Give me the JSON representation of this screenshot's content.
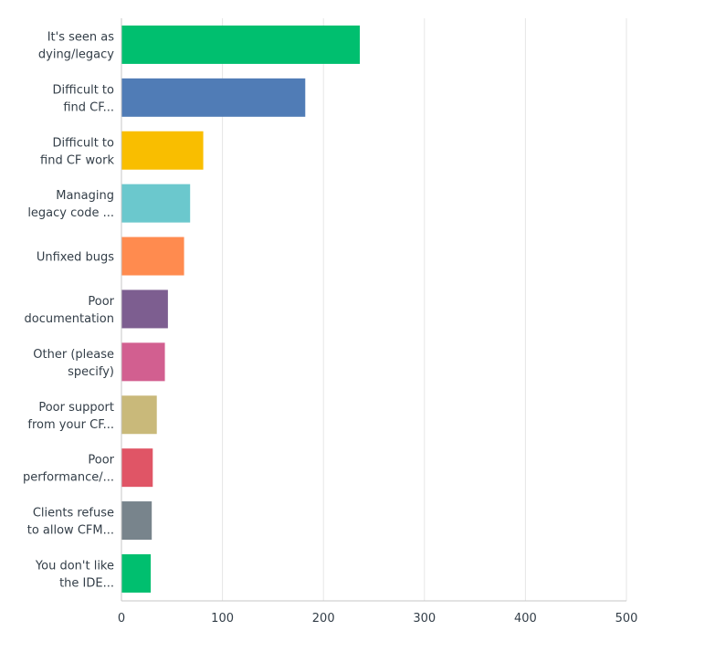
{
  "chart_data": {
    "type": "bar",
    "orientation": "horizontal",
    "categories": [
      [
        "It's seen as",
        "dying/legacy"
      ],
      [
        "Difficult to",
        "find CF..."
      ],
      [
        "Difficult to",
        "find CF work"
      ],
      [
        "Managing",
        "legacy code ..."
      ],
      [
        "Unfixed bugs"
      ],
      [
        "Poor",
        "documentation"
      ],
      [
        "Other (please",
        "specify)"
      ],
      [
        "Poor support",
        "from your CF..."
      ],
      [
        "Poor",
        "performance/..."
      ],
      [
        "Clients refuse",
        "to allow CFM..."
      ],
      [
        "You don't like",
        "the IDE..."
      ]
    ],
    "values": [
      236,
      182,
      81,
      68,
      62,
      46,
      43,
      35,
      31,
      30,
      29
    ],
    "colors": [
      "#00bf6f",
      "#507cb6",
      "#f9be00",
      "#6bc8cd",
      "#ff8b4f",
      "#7d5e90",
      "#d25f90",
      "#c9b97a",
      "#e05566",
      "#78848c",
      "#00bf6f"
    ],
    "xlim": [
      0,
      500
    ],
    "xticks": [
      "0",
      "100",
      "200",
      "300",
      "400",
      "500"
    ],
    "xlabel": "",
    "ylabel": "",
    "title": "",
    "grid": true,
    "legend": false
  }
}
